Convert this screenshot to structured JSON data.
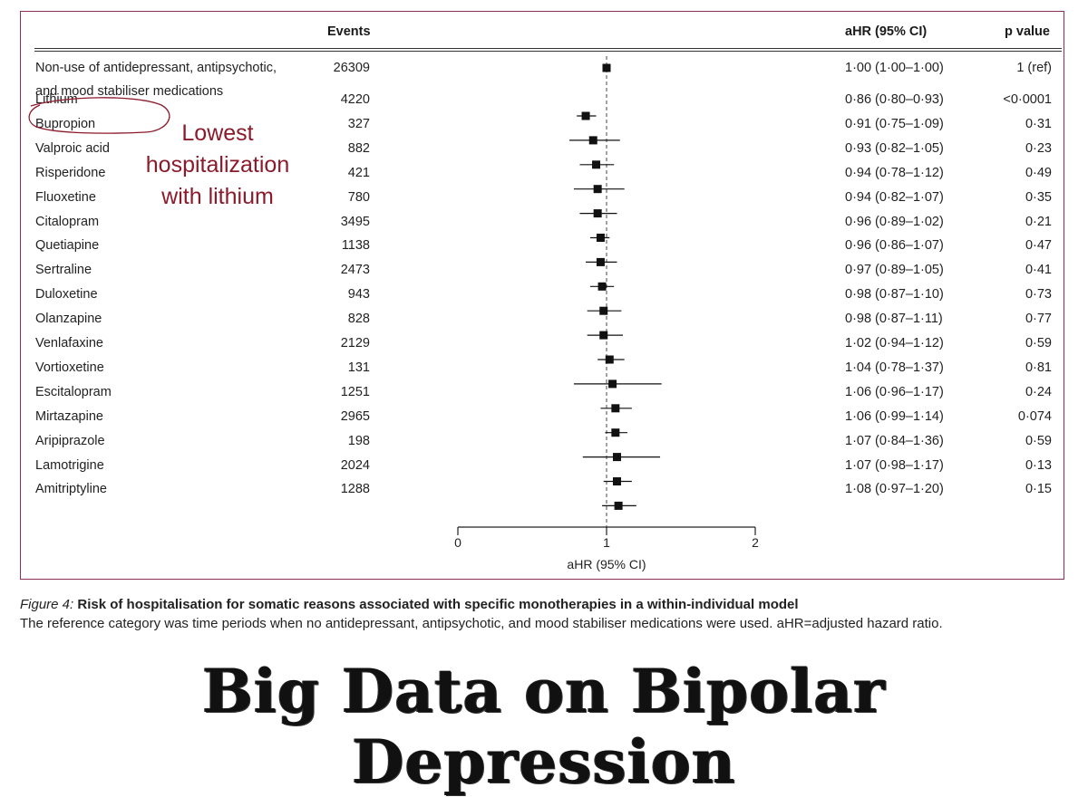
{
  "headers": {
    "events": "Events",
    "ahr": "aHR (95% CI)",
    "p": "p value"
  },
  "rows": [
    {
      "drug": "Non-use of antidepressant, antipsychotic,",
      "drug2": "and mood stabiliser medications",
      "events": "26309",
      "ahr_text": "1·00 (1·00–1·00)",
      "p": "1 (ref)"
    },
    {
      "drug": "Lithium",
      "events": "4220",
      "ahr_text": "0·86 (0·80–0·93)",
      "p": "<0·0001"
    },
    {
      "drug": "Bupropion",
      "events": "327",
      "ahr_text": "0·91 (0·75–1·09)",
      "p": "0·31"
    },
    {
      "drug": "Valproic acid",
      "events": "882",
      "ahr_text": "0·93 (0·82–1·05)",
      "p": "0·23"
    },
    {
      "drug": "Risperidone",
      "events": "421",
      "ahr_text": "0·94 (0·78–1·12)",
      "p": "0·49"
    },
    {
      "drug": "Fluoxetine",
      "events": "780",
      "ahr_text": "0·94 (0·82–1·07)",
      "p": "0·35"
    },
    {
      "drug": "Citalopram",
      "events": "3495",
      "ahr_text": "0·96 (0·89–1·02)",
      "p": "0·21"
    },
    {
      "drug": "Quetiapine",
      "events": "1138",
      "ahr_text": "0·96 (0·86–1·07)",
      "p": "0·47"
    },
    {
      "drug": "Sertraline",
      "events": "2473",
      "ahr_text": "0·97 (0·89–1·05)",
      "p": "0·41"
    },
    {
      "drug": "Duloxetine",
      "events": "943",
      "ahr_text": "0·98 (0·87–1·10)",
      "p": "0·73"
    },
    {
      "drug": "Olanzapine",
      "events": "828",
      "ahr_text": "0·98 (0·87–1·11)",
      "p": "0·77"
    },
    {
      "drug": "Venlafaxine",
      "events": "2129",
      "ahr_text": "1·02 (0·94–1·12)",
      "p": "0·59"
    },
    {
      "drug": "Vortioxetine",
      "events": "131",
      "ahr_text": "1·04 (0·78–1·37)",
      "p": "0·81"
    },
    {
      "drug": "Escitalopram",
      "events": "1251",
      "ahr_text": "1·06 (0·96–1·17)",
      "p": "0·24"
    },
    {
      "drug": "Mirtazapine",
      "events": "2965",
      "ahr_text": "1·06 (0·99–1·14)",
      "p": "0·074"
    },
    {
      "drug": "Aripiprazole",
      "events": "198",
      "ahr_text": "1·07 (0·84–1·36)",
      "p": "0·59"
    },
    {
      "drug": "Lamotrigine",
      "events": "2024",
      "ahr_text": "1·07 (0·98–1·17)",
      "p": "0·13"
    },
    {
      "drug": "Amitriptyline",
      "events": "1288",
      "ahr_text": "1·08 (0·97–1·20)",
      "p": "0·15"
    }
  ],
  "chart_data": {
    "type": "forest",
    "xlabel": "aHR (95% CI)",
    "xlim": [
      0,
      2
    ],
    "xticks": [
      "0",
      "1",
      "2"
    ],
    "reference_line": 1,
    "series": [
      {
        "category": "Non-use of antidepressant, antipsychotic, and mood stabiliser medications",
        "estimate": 1.0,
        "lower": 1.0,
        "upper": 1.0
      },
      {
        "category": "Lithium",
        "estimate": 0.86,
        "lower": 0.8,
        "upper": 0.93
      },
      {
        "category": "Bupropion",
        "estimate": 0.91,
        "lower": 0.75,
        "upper": 1.09
      },
      {
        "category": "Valproic acid",
        "estimate": 0.93,
        "lower": 0.82,
        "upper": 1.05
      },
      {
        "category": "Risperidone",
        "estimate": 0.94,
        "lower": 0.78,
        "upper": 1.12
      },
      {
        "category": "Fluoxetine",
        "estimate": 0.94,
        "lower": 0.82,
        "upper": 1.07
      },
      {
        "category": "Citalopram",
        "estimate": 0.96,
        "lower": 0.89,
        "upper": 1.02
      },
      {
        "category": "Quetiapine",
        "estimate": 0.96,
        "lower": 0.86,
        "upper": 1.07
      },
      {
        "category": "Sertraline",
        "estimate": 0.97,
        "lower": 0.89,
        "upper": 1.05
      },
      {
        "category": "Duloxetine",
        "estimate": 0.98,
        "lower": 0.87,
        "upper": 1.1
      },
      {
        "category": "Olanzapine",
        "estimate": 0.98,
        "lower": 0.87,
        "upper": 1.11
      },
      {
        "category": "Venlafaxine",
        "estimate": 1.02,
        "lower": 0.94,
        "upper": 1.12
      },
      {
        "category": "Vortioxetine",
        "estimate": 1.04,
        "lower": 0.78,
        "upper": 1.37
      },
      {
        "category": "Escitalopram",
        "estimate": 1.06,
        "lower": 0.96,
        "upper": 1.17
      },
      {
        "category": "Mirtazapine",
        "estimate": 1.06,
        "lower": 0.99,
        "upper": 1.14
      },
      {
        "category": "Aripiprazole",
        "estimate": 1.07,
        "lower": 0.84,
        "upper": 1.36
      },
      {
        "category": "Lamotrigine",
        "estimate": 1.07,
        "lower": 0.98,
        "upper": 1.17
      },
      {
        "category": "Amitriptyline",
        "estimate": 1.08,
        "lower": 0.97,
        "upper": 1.2
      }
    ]
  },
  "annotation": {
    "line1": "Lowest",
    "line2": "hospitalization",
    "line3": "with lithium",
    "color": "#8b1a2b"
  },
  "caption": {
    "label": "Figure 4:",
    "title": " Risk of hospitalisation for somatic reasons associated with specific monotherapies in a within-individual model",
    "note": "The reference category was time periods when no antidepressant, antipsychotic, and mood stabiliser medications were used. aHR=adjusted hazard ratio."
  },
  "banner": "Big Data on Bipolar Depression",
  "colors": {
    "frame": "#8b2f57",
    "annotation": "#8b1a2b"
  }
}
